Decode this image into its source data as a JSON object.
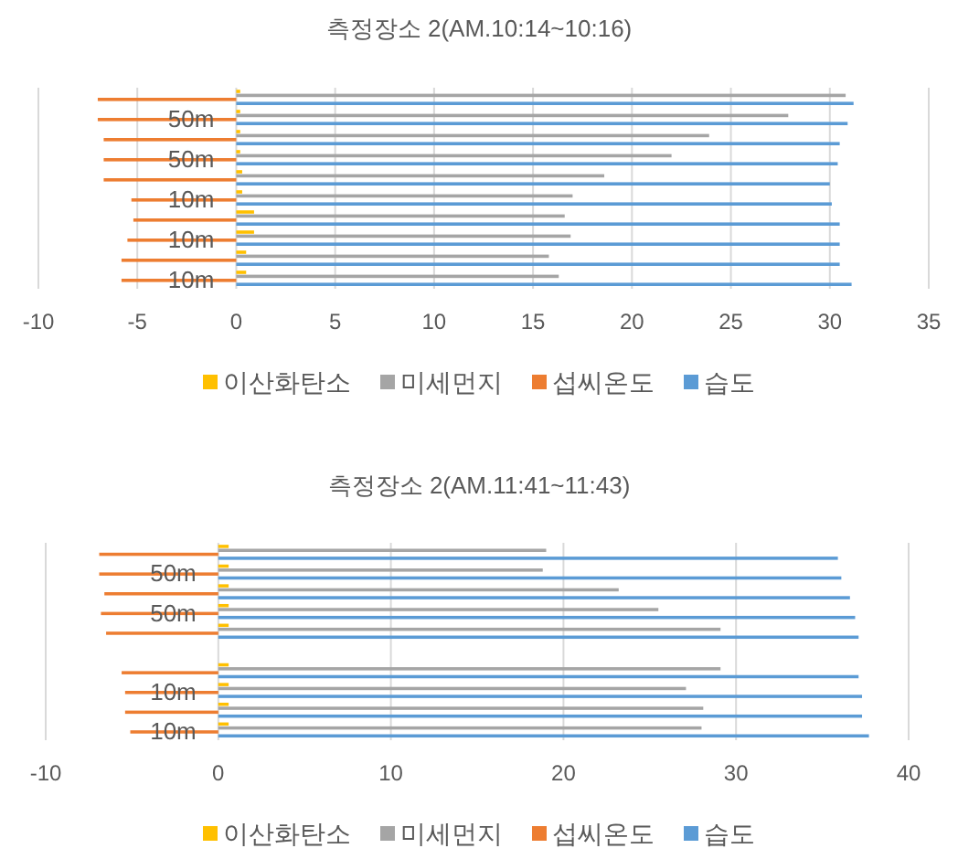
{
  "chart_data": [
    {
      "type": "bar",
      "orientation": "horizontal",
      "title": "측정장소 2(AM.10:14~10:16)",
      "categories": [
        null,
        "50m",
        null,
        "50m",
        null,
        "10m",
        null,
        "10m",
        null,
        "10m"
      ],
      "series": [
        {
          "name": "이산화탄소",
          "color": "#ffc000",
          "values": [
            0.2,
            0.2,
            0.2,
            0.2,
            0.3,
            0.3,
            0.9,
            0.9,
            0.5,
            0.5
          ]
        },
        {
          "name": "미세먼지",
          "color": "#a5a5a5",
          "values": [
            30.8,
            27.9,
            23.9,
            22.0,
            18.6,
            17.0,
            16.6,
            16.9,
            15.8,
            16.3
          ]
        },
        {
          "name": "섭씨온도",
          "color": "#ed7d31",
          "values": [
            -7.0,
            -7.0,
            -6.7,
            -6.7,
            -6.7,
            -5.3,
            -5.2,
            -5.5,
            -5.8,
            -5.8
          ]
        },
        {
          "name": "습도",
          "color": "#5b9bd5",
          "values": [
            31.2,
            30.9,
            30.5,
            30.4,
            30.0,
            30.1,
            30.5,
            30.5,
            30.5,
            31.1
          ]
        }
      ],
      "xlim": [
        -10,
        35
      ],
      "xticks": [
        -10,
        -5,
        0,
        5,
        10,
        15,
        20,
        25,
        30,
        35
      ],
      "grid": "x",
      "legend": "bottom"
    },
    {
      "type": "bar",
      "orientation": "horizontal",
      "title": "측정장소 2(AM.11:41~11:43)",
      "categories": [
        null,
        "50m",
        null,
        "50m",
        null,
        null,
        null,
        "10m",
        null,
        "10m"
      ],
      "series": [
        {
          "name": "이산화탄소",
          "color": "#ffc000",
          "values": [
            0.6,
            0.6,
            0.6,
            0.6,
            0.6,
            null,
            0.6,
            0.6,
            0.6,
            0.6
          ]
        },
        {
          "name": "미세먼지",
          "color": "#a5a5a5",
          "values": [
            19.0,
            18.8,
            23.2,
            25.5,
            29.1,
            null,
            29.1,
            27.1,
            28.1,
            28.0
          ]
        },
        {
          "name": "섭씨온도",
          "color": "#ed7d31",
          "values": [
            -6.9,
            -6.9,
            -6.6,
            -6.8,
            -6.5,
            null,
            -5.6,
            -5.4,
            -5.4,
            -5.1
          ]
        },
        {
          "name": "습도",
          "color": "#5b9bd5",
          "values": [
            35.9,
            36.1,
            36.6,
            36.9,
            37.1,
            null,
            37.1,
            37.3,
            37.3,
            37.7
          ]
        }
      ],
      "xlim": [
        -10,
        40
      ],
      "xticks": [
        -10,
        0,
        10,
        20,
        30,
        40
      ],
      "grid": "x",
      "legend": "bottom"
    }
  ]
}
